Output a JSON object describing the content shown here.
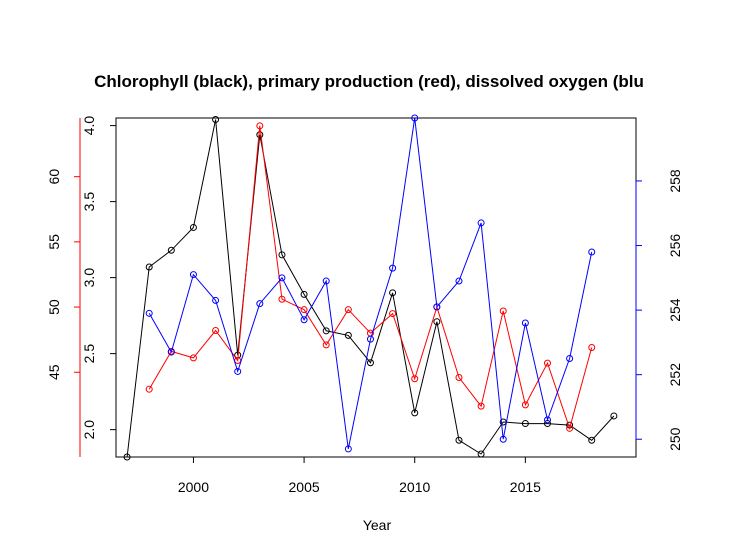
{
  "chart_data": {
    "type": "line",
    "title": "Chlorophyll (black), primary production (red), dissolved oxygen (blu",
    "xlabel": "Year",
    "xlim": [
      1996.5,
      2020
    ],
    "x_ticks": [
      "2000",
      "2005",
      "2010",
      "2015"
    ],
    "axes": {
      "black": {
        "side": "left-inner",
        "color": "#000000",
        "ylim": [
          1.82,
          4.05
        ],
        "ticks": [
          "2.0",
          "2.5",
          "3.0",
          "3.5",
          "4.0"
        ]
      },
      "red": {
        "side": "left-outer",
        "color": "#ff0000",
        "ylim": [
          38.5,
          64.5
        ],
        "ticks": [
          "45",
          "50",
          "55",
          "60"
        ]
      },
      "blue": {
        "side": "right",
        "color": "#0000ff",
        "ylim": [
          249.45,
          259.95
        ],
        "ticks": [
          "250",
          "252",
          "254",
          "256",
          "258"
        ]
      }
    },
    "series": [
      {
        "name": "Chlorophyll",
        "color": "#000000",
        "axis": "black",
        "x": [
          1997,
          1998,
          1999,
          2000,
          2001,
          2002,
          2003,
          2004,
          2005,
          2006,
          2007,
          2008,
          2009,
          2010,
          2011,
          2012,
          2013,
          2014,
          2015,
          2016,
          2017,
          2018,
          2019
        ],
        "values": [
          1.82,
          3.07,
          3.18,
          3.33,
          4.04,
          2.49,
          3.94,
          3.15,
          2.89,
          2.65,
          2.62,
          2.44,
          2.9,
          2.11,
          2.71,
          1.93,
          1.84,
          2.05,
          2.04,
          2.04,
          2.03,
          1.93,
          2.09
        ]
      },
      {
        "name": "Primary production",
        "color": "#ff0000",
        "axis": "red",
        "x": [
          1998,
          1999,
          2000,
          2001,
          2002,
          2003,
          2004,
          2005,
          2006,
          2007,
          2008,
          2009,
          2010,
          2011,
          2012,
          2013,
          2014,
          2015,
          2016,
          2017,
          2018
        ],
        "values": [
          43.7,
          46.6,
          46.1,
          48.2,
          45.9,
          63.9,
          50.6,
          49.8,
          47.1,
          49.8,
          48.0,
          49.5,
          44.5,
          50.0,
          44.6,
          42.4,
          49.7,
          42.5,
          45.7,
          40.7,
          46.9
        ]
      },
      {
        "name": "Dissolved oxygen",
        "color": "#0000ff",
        "axis": "blue",
        "x": [
          1998,
          1999,
          2000,
          2001,
          2002,
          2003,
          2004,
          2005,
          2006,
          2007,
          2008,
          2009,
          2010,
          2011,
          2012,
          2013,
          2014,
          2015,
          2016,
          2017,
          2018
        ],
        "values": [
          253.9,
          252.7,
          255.1,
          254.3,
          252.1,
          254.2,
          255.0,
          253.7,
          254.9,
          249.7,
          253.1,
          255.3,
          259.95,
          254.1,
          254.9,
          256.7,
          250.0,
          253.6,
          250.6,
          252.5,
          255.8
        ]
      }
    ]
  }
}
